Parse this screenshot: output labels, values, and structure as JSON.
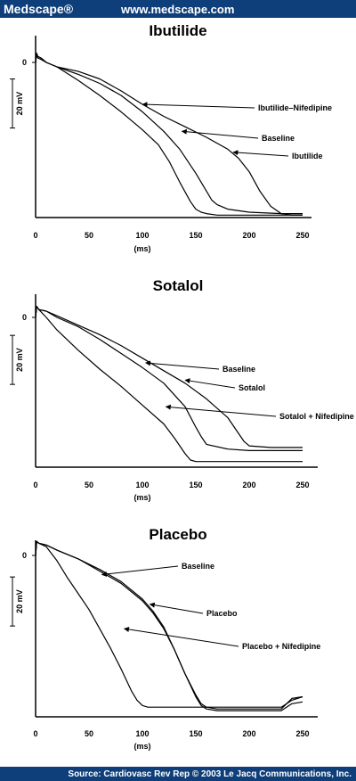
{
  "header": {
    "brand": "Medscape®",
    "url": "www.medscape.com"
  },
  "footer": {
    "source": "Source: Cardiovasc Rev Rep © 2003 Le Jacq Communications, Inc."
  },
  "chart_data": [
    {
      "type": "line",
      "title": "Ibutilide",
      "xlabel": "(ms)",
      "ylabel": "20 mV",
      "y_tick_labels": [
        "0"
      ],
      "x_ticks": [
        0,
        50,
        100,
        150,
        200,
        250
      ],
      "xlim": [
        0,
        260
      ],
      "ylim": [
        -103,
        8
      ],
      "grid": false,
      "legend": "inline annotations with arrows",
      "series": [
        {
          "name": "Ibutilide–Nifedipine",
          "x": [
            0,
            1,
            2,
            5,
            10,
            20,
            40,
            60,
            80,
            100,
            115,
            125,
            135,
            145,
            150,
            155,
            160,
            170,
            200,
            250
          ],
          "y": [
            0,
            6,
            3,
            2,
            0,
            -3,
            -12,
            -22,
            -33,
            -45,
            -55,
            -66,
            -80,
            -93,
            -98,
            -100,
            -101,
            -102,
            -102,
            -102
          ]
        },
        {
          "name": "Baseline",
          "x": [
            0,
            1,
            2,
            5,
            10,
            20,
            40,
            60,
            80,
            100,
            120,
            135,
            150,
            160,
            165,
            170,
            180,
            200,
            230,
            250
          ],
          "y": [
            0,
            6,
            4,
            3,
            0,
            -3,
            -8,
            -14,
            -22,
            -33,
            -46,
            -58,
            -74,
            -86,
            -92,
            -95,
            -98,
            -100,
            -101,
            -101
          ]
        },
        {
          "name": "Ibutilide",
          "x": [
            0,
            1,
            2,
            5,
            10,
            20,
            40,
            60,
            80,
            100,
            120,
            140,
            160,
            180,
            190,
            200,
            210,
            220,
            230,
            240,
            250
          ],
          "y": [
            0,
            6,
            4,
            3,
            0,
            -3,
            -6,
            -11,
            -19,
            -28,
            -36,
            -43,
            -50,
            -58,
            -64,
            -73,
            -86,
            -96,
            -101,
            -102,
            -102
          ]
        }
      ],
      "annotations": [
        {
          "text": "Ibutilide–Nifedipine",
          "target": [
            100,
            -28
          ]
        },
        {
          "text": "Baseline",
          "target": [
            137,
            -46
          ]
        },
        {
          "text": "Ibutilide",
          "target": [
            185,
            -60
          ]
        }
      ]
    },
    {
      "type": "line",
      "title": "Sotalol",
      "xlabel": "(ms)",
      "ylabel": "20 mV",
      "y_tick_labels": [
        "0"
      ],
      "x_ticks": [
        0,
        50,
        100,
        150,
        200,
        250
      ],
      "xlim": [
        0,
        260
      ],
      "ylim": [
        -95,
        8
      ],
      "grid": false,
      "legend": "inline annotations with arrows",
      "series": [
        {
          "name": "Baseline",
          "x": [
            0,
            1,
            3,
            10,
            20,
            40,
            60,
            80,
            100,
            120,
            140,
            150,
            155,
            160,
            180,
            200,
            250
          ],
          "y": [
            0,
            7,
            5,
            4,
            0,
            -6,
            -14,
            -23,
            -32,
            -42,
            -57,
            -70,
            -76,
            -81,
            -84,
            -85,
            -85
          ]
        },
        {
          "name": "Sotalol",
          "x": [
            0,
            1,
            3,
            10,
            20,
            40,
            60,
            80,
            100,
            120,
            140,
            160,
            180,
            190,
            195,
            200,
            220,
            250
          ],
          "y": [
            0,
            7,
            5,
            4,
            1,
            -5,
            -11,
            -18,
            -26,
            -34,
            -42,
            -52,
            -64,
            -74,
            -79,
            -82,
            -83,
            -83
          ]
        },
        {
          "name": "Sotalol + Nifedipine",
          "x": [
            0,
            1,
            3,
            10,
            20,
            40,
            60,
            80,
            100,
            120,
            130,
            140,
            145,
            150,
            160,
            250
          ],
          "y": [
            0,
            7,
            5,
            0,
            -8,
            -21,
            -33,
            -44,
            -56,
            -68,
            -77,
            -87,
            -91,
            -92,
            -92,
            -92
          ]
        }
      ],
      "annotations": [
        {
          "text": "Baseline",
          "target": [
            103,
            -29
          ]
        },
        {
          "text": "Sotalol",
          "target": [
            140,
            -40
          ]
        },
        {
          "text": "Sotalol + Nifedipine",
          "target": [
            122,
            -57
          ]
        }
      ]
    },
    {
      "type": "line",
      "title": "Placebo",
      "xlabel": "(ms)",
      "ylabel": "20 mV",
      "y_tick_labels": [
        "0"
      ],
      "x_ticks": [
        0,
        50,
        100,
        150,
        200,
        250
      ],
      "xlim": [
        0,
        260
      ],
      "ylim": [
        -92,
        8
      ],
      "grid": false,
      "legend": "inline annotations with arrows",
      "series": [
        {
          "name": "Baseline",
          "x": [
            0,
            1,
            3,
            10,
            20,
            40,
            60,
            80,
            100,
            110,
            120,
            130,
            140,
            150,
            155,
            160,
            170,
            200,
            230,
            240,
            250
          ],
          "y": [
            0,
            8,
            7,
            6,
            3,
            -2,
            -8,
            -15,
            -25,
            -32,
            -41,
            -54,
            -68,
            -80,
            -85,
            -87,
            -88,
            -88,
            -88,
            -82,
            -81
          ]
        },
        {
          "name": "Placebo",
          "x": [
            0,
            1,
            3,
            10,
            20,
            40,
            60,
            80,
            100,
            110,
            120,
            130,
            140,
            150,
            155,
            160,
            170,
            200,
            230,
            240,
            250
          ],
          "y": [
            0,
            8,
            7,
            6,
            3,
            -2,
            -9,
            -16,
            -26,
            -33,
            -42,
            -54,
            -68,
            -81,
            -86,
            -88,
            -89,
            -89,
            -89,
            -85,
            -84
          ]
        },
        {
          "name": "Placebo + Nifedipine",
          "x": [
            0,
            1,
            3,
            10,
            20,
            30,
            40,
            50,
            60,
            70,
            80,
            90,
            95,
            100,
            105,
            110,
            120,
            160,
            230,
            240,
            250
          ],
          "y": [
            0,
            8,
            7,
            5,
            -3,
            -13,
            -22,
            -31,
            -42,
            -53,
            -65,
            -78,
            -83,
            -86,
            -87,
            -87,
            -87,
            -87,
            -87,
            -83,
            -81
          ]
        }
      ],
      "annotations": [
        {
          "text": "Baseline",
          "target": [
            62,
            -11
          ]
        },
        {
          "text": "Placebo",
          "target": [
            107,
            -28
          ]
        },
        {
          "text": "Placebo + Nifedipine",
          "target": [
            83,
            -42
          ]
        }
      ]
    }
  ]
}
